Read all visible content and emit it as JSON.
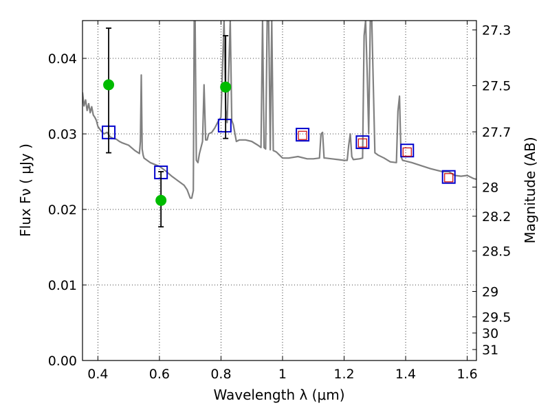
{
  "chart_data": {
    "type": "scatter",
    "xlabel": "Wavelength  λ (μm)",
    "ylabel": "Flux  Fν  ( μJy )",
    "y2label": "Magnitude (AB)",
    "xlim": [
      0.35,
      1.63
    ],
    "ylim": [
      0.0,
      0.045
    ],
    "grid": true,
    "x_ticks": [
      0.4,
      0.6,
      0.8,
      1.0,
      1.2,
      1.4,
      1.6
    ],
    "x_tick_labels": [
      "0.4",
      "0.6",
      "0.8",
      "1",
      "1.2",
      "1.4",
      "1.6"
    ],
    "y_ticks": [
      0.0,
      0.01,
      0.02,
      0.03,
      0.04
    ],
    "y_tick_labels": [
      "0.00",
      "0.01",
      "0.02",
      "0.03",
      "0.04"
    ],
    "y2_ticks": [
      {
        "label": "27.3",
        "flux": 0.04376
      },
      {
        "label": "27.5",
        "flux": 0.03639
      },
      {
        "label": "27.7",
        "flux": 0.03027
      },
      {
        "label": "28",
        "flux": 0.02296
      },
      {
        "label": "28.2",
        "flux": 0.0191
      },
      {
        "label": "28.5",
        "flux": 0.01449
      },
      {
        "label": "29",
        "flux": 0.00914
      },
      {
        "label": "29.5",
        "flux": 0.00577
      },
      {
        "label": "30",
        "flux": 0.00364
      },
      {
        "label": "31",
        "flux": 0.00145
      }
    ],
    "series": [
      {
        "marker": "line",
        "color": "#808080",
        "x": [
          0.35,
          0.355,
          0.36,
          0.365,
          0.37,
          0.375,
          0.38,
          0.385,
          0.39,
          0.395,
          0.4,
          0.41,
          0.42,
          0.43,
          0.44,
          0.45,
          0.46,
          0.47,
          0.48,
          0.5,
          0.52,
          0.535,
          0.538,
          0.541,
          0.544,
          0.547,
          0.55,
          0.57,
          0.6,
          0.62,
          0.64,
          0.66,
          0.68,
          0.69,
          0.7,
          0.705,
          0.71,
          0.713,
          0.716,
          0.72,
          0.725,
          0.73,
          0.74,
          0.745,
          0.75,
          0.755,
          0.76,
          0.77,
          0.78,
          0.79,
          0.8,
          0.805,
          0.81,
          0.815,
          0.82,
          0.83,
          0.835,
          0.84,
          0.85,
          0.86,
          0.88,
          0.9,
          0.92,
          0.93,
          0.935,
          0.94,
          0.945,
          0.95,
          0.955,
          0.96,
          0.965,
          0.97,
          0.975,
          0.98,
          0.99,
          1.0,
          1.02,
          1.05,
          1.08,
          1.1,
          1.12,
          1.125,
          1.13,
          1.135,
          1.14,
          1.16,
          1.18,
          1.2,
          1.21,
          1.215,
          1.22,
          1.225,
          1.23,
          1.25,
          1.26,
          1.265,
          1.27,
          1.275,
          1.28,
          1.285,
          1.29,
          1.3,
          1.31,
          1.33,
          1.35,
          1.37,
          1.375,
          1.38,
          1.385,
          1.39,
          1.4,
          1.42,
          1.45,
          1.48,
          1.5,
          1.52,
          1.54,
          1.56,
          1.58,
          1.6,
          1.62,
          1.63
        ],
        "values": [
          0.0355,
          0.0337,
          0.0345,
          0.0331,
          0.034,
          0.0328,
          0.0336,
          0.0325,
          0.0322,
          0.0318,
          0.031,
          0.0304,
          0.03,
          0.0302,
          0.0296,
          0.0294,
          0.0293,
          0.029,
          0.0288,
          0.0285,
          0.0278,
          0.0274,
          0.029,
          0.0378,
          0.028,
          0.0272,
          0.0268,
          0.0262,
          0.0257,
          0.0251,
          0.0244,
          0.0238,
          0.0232,
          0.0226,
          0.0215,
          0.0215,
          0.0225,
          0.045,
          0.045,
          0.0265,
          0.0262,
          0.0274,
          0.029,
          0.0365,
          0.0292,
          0.0292,
          0.03,
          0.0302,
          0.0308,
          0.0316,
          0.0322,
          0.039,
          0.045,
          0.0333,
          0.0315,
          0.045,
          0.0318,
          0.0312,
          0.029,
          0.0292,
          0.0292,
          0.029,
          0.0285,
          0.0282,
          0.045,
          0.0282,
          0.028,
          0.045,
          0.045,
          0.0279,
          0.045,
          0.0278,
          0.0277,
          0.0276,
          0.0272,
          0.0268,
          0.0268,
          0.027,
          0.0267,
          0.0267,
          0.0268,
          0.03,
          0.0302,
          0.0268,
          0.0268,
          0.0267,
          0.0266,
          0.0265,
          0.0265,
          0.0285,
          0.03,
          0.027,
          0.0266,
          0.0267,
          0.0268,
          0.043,
          0.045,
          0.038,
          0.03,
          0.045,
          0.045,
          0.0275,
          0.0272,
          0.0268,
          0.0263,
          0.0262,
          0.033,
          0.035,
          0.027,
          0.0265,
          0.0264,
          0.0262,
          0.0258,
          0.0254,
          0.0252,
          0.025,
          0.025,
          0.0245,
          0.0244,
          0.0245,
          0.0241,
          0.024
        ]
      },
      {
        "marker": "open-square",
        "color": "#0000cc",
        "x": [
          0.435,
          0.605,
          0.812,
          1.065,
          1.26,
          1.405,
          1.54
        ],
        "values": [
          0.0302,
          0.0249,
          0.0311,
          0.0299,
          0.0289,
          0.0278,
          0.0243
        ]
      },
      {
        "marker": "open-square-small",
        "color": "#cc0000",
        "x": [
          1.065,
          1.26,
          1.405,
          1.54
        ],
        "values": [
          0.0298,
          0.0288,
          0.0276,
          0.0242
        ]
      },
      {
        "marker": "filled-circle",
        "color": "#00bb00",
        "x": [
          0.435,
          0.605,
          0.815
        ],
        "values": [
          0.0365,
          0.0212,
          0.0362
        ],
        "err_low": [
          0.0275,
          0.0177,
          0.0294
        ],
        "err_high": [
          0.044,
          0.025,
          0.043
        ]
      }
    ]
  }
}
